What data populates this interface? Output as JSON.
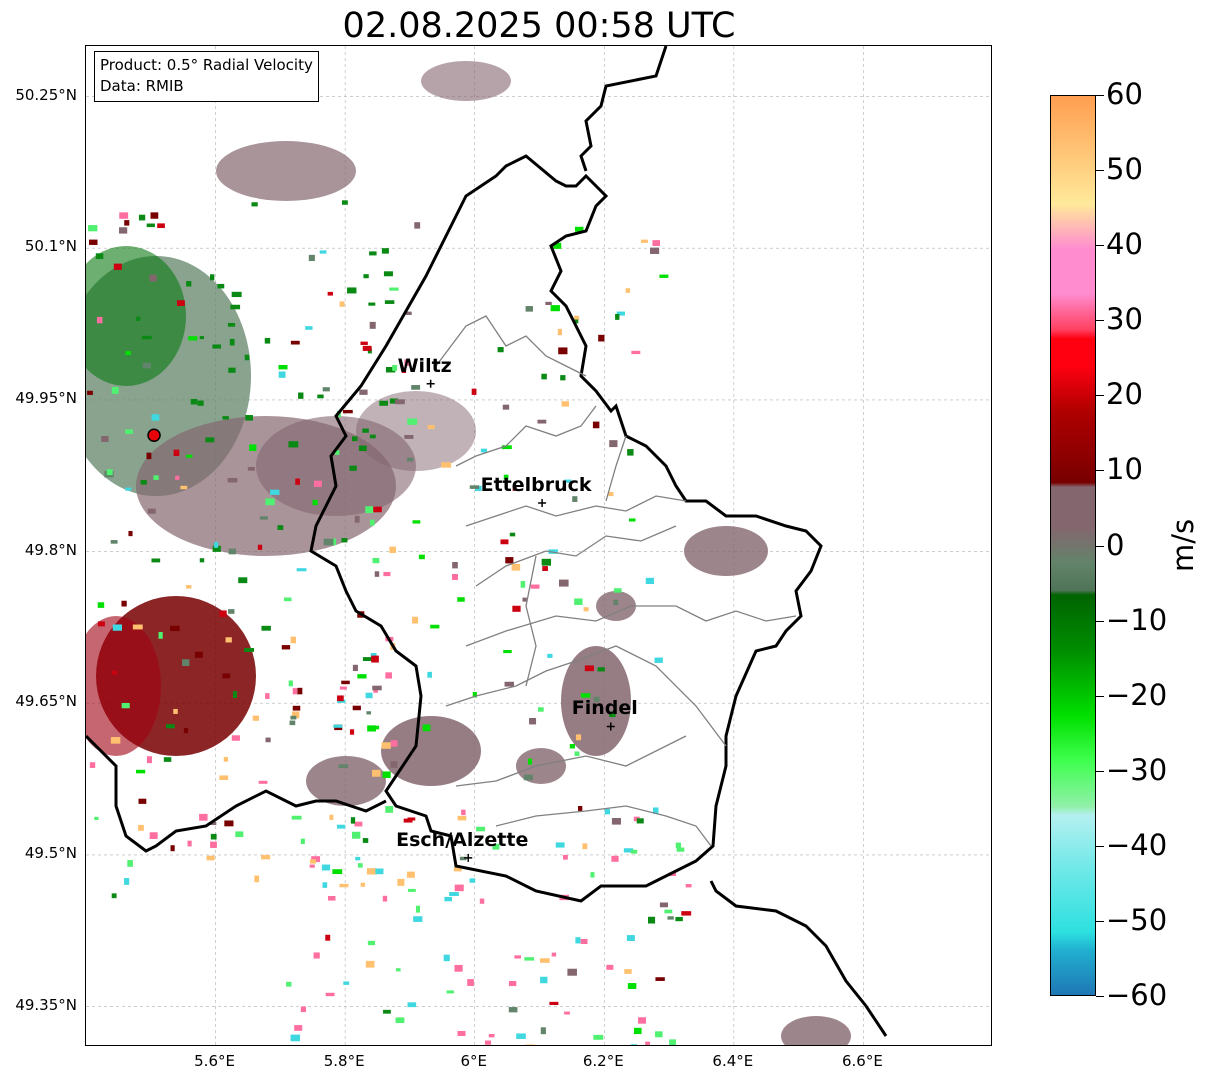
{
  "title": "02.08.2025 00:58 UTC",
  "info": {
    "product": "Product: 0.5° Radial Velocity",
    "data": "Data: RMIB"
  },
  "map": {
    "lon_range": [
      5.4,
      6.8
    ],
    "lat_range": [
      49.31,
      50.3
    ],
    "lat_ticks": [
      "50.25°N",
      "50.1°N",
      "49.95°N",
      "49.8°N",
      "49.65°N",
      "49.5°N",
      "49.35°N"
    ],
    "lon_ticks": [
      "5.6°E",
      "5.8°E",
      "6°E",
      "6.2°E",
      "6.4°E",
      "6.6°E"
    ],
    "grid": true,
    "radar_site": {
      "lon": 5.505,
      "lat": 49.915
    },
    "cities": [
      {
        "name": "Wiltz",
        "lon": 5.932,
        "lat": 49.966
      },
      {
        "name": "Ettelbruck",
        "lon": 6.104,
        "lat": 49.848
      },
      {
        "name": "Findel",
        "lon": 6.21,
        "lat": 49.627
      },
      {
        "name": "Esch/Alzette",
        "lon": 5.99,
        "lat": 49.497
      }
    ]
  },
  "colorbar": {
    "unit": "m/s",
    "range": [
      -60,
      60
    ],
    "tick_labels": [
      "60",
      "50",
      "40",
      "30",
      "20",
      "10",
      "0",
      "−10",
      "−20",
      "−30",
      "−40",
      "−50",
      "−60"
    ],
    "colors": {
      "high_orange": "#ff9e50",
      "light_yellow": "#ffe99a",
      "pink": "#ff8ccf",
      "red": "#ff0010",
      "dark_red": "#780000",
      "mauve": "#84666f",
      "gray_green": "#62846a",
      "dark_green": "#006400",
      "green": "#00e000",
      "light_green": "#90f0a8",
      "light_cyan": "#b4f0f0",
      "cyan": "#2ee0e0",
      "blue": "#1f77b4"
    }
  }
}
